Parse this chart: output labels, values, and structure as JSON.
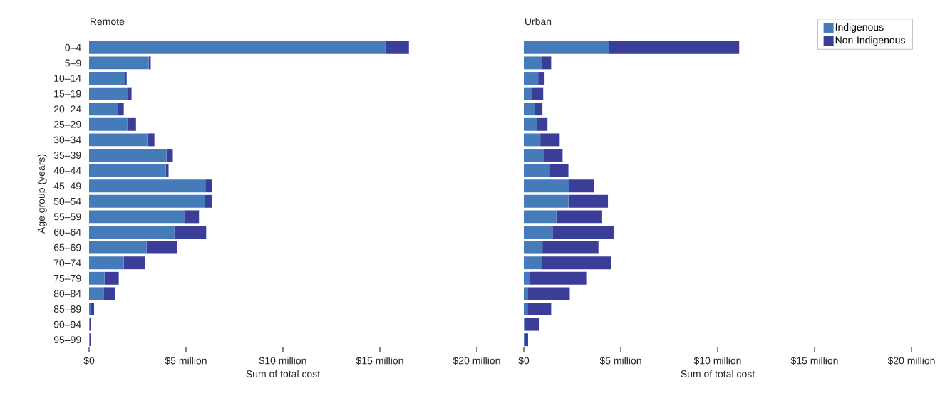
{
  "chart_data": [
    {
      "type": "bar",
      "orientation": "horizontal",
      "stacked": true,
      "title": "Remote",
      "xlabel": "Sum of total cost",
      "ylabel": "Age group (years)",
      "categories": [
        "0–4",
        "5–9",
        "10–14",
        "15–19",
        "20–24",
        "25–29",
        "30–34",
        "35–39",
        "40–44",
        "45–49",
        "50–54",
        "55–59",
        "60–64",
        "65–69",
        "70–74",
        "75–79",
        "80–84",
        "85–89",
        "90–94",
        "95–99"
      ],
      "series": [
        {
          "color": "#467bba",
          "values": [
            15.29,
            3.07,
            1.87,
            2.01,
            1.5,
            1.98,
            3.0,
            3.99,
            3.95,
            6.0,
            5.96,
            4.9,
            4.39,
            2.96,
            1.79,
            0.8,
            0.77,
            0.11,
            0.02,
            0.02
          ]
        },
        {
          "color": "#3a3e98",
          "values": [
            1.21,
            0.11,
            0.07,
            0.18,
            0.29,
            0.44,
            0.37,
            0.33,
            0.15,
            0.33,
            0.4,
            0.77,
            1.65,
            1.57,
            1.1,
            0.73,
            0.59,
            0.15,
            0.08,
            0.08
          ]
        }
      ],
      "xlim": [
        0,
        20
      ],
      "xticks": [
        {
          "value": 0,
          "label": "$0"
        },
        {
          "value": 5,
          "label": "$5 million"
        },
        {
          "value": 10,
          "label": "$10 million"
        },
        {
          "value": 15,
          "label": "$15 million"
        },
        {
          "value": 20,
          "label": "$20 million"
        }
      ]
    },
    {
      "type": "bar",
      "orientation": "horizontal",
      "stacked": true,
      "title": "Urban",
      "xlabel": "Sum of total cost",
      "legend": "top right",
      "tick_labels": "x",
      "categories": [
        null,
        null,
        null,
        null,
        null,
        null,
        null,
        null,
        null,
        null,
        null,
        null,
        null,
        null,
        null,
        null,
        null,
        null,
        null,
        null
      ],
      "series": [
        {
          "name": "Indigenous",
          "color": "#467bba",
          "values": [
            4.41,
            0.93,
            0.74,
            0.44,
            0.56,
            0.67,
            0.85,
            1.04,
            1.33,
            2.33,
            2.3,
            1.67,
            1.48,
            0.96,
            0.89,
            0.33,
            0.22,
            0.19,
            0.02,
            0.04
          ]
        },
        {
          "name": "Non-Indigenous",
          "color": "#3a3e98",
          "values": [
            6.7,
            0.48,
            0.33,
            0.56,
            0.4,
            0.55,
            1.0,
            0.96,
            0.97,
            1.3,
            2.04,
            2.37,
            3.15,
            2.89,
            3.63,
            2.89,
            2.15,
            1.22,
            0.79,
            0.18
          ]
        }
      ],
      "xlim": [
        0,
        20
      ],
      "xticks": [
        {
          "value": 0,
          "label": "$0"
        },
        {
          "value": 5,
          "label": "$5 million"
        },
        {
          "value": 10,
          "label": "$10 million"
        },
        {
          "value": 15,
          "label": "$15 million"
        },
        {
          "value": 20,
          "label": "$20 million"
        }
      ]
    }
  ]
}
